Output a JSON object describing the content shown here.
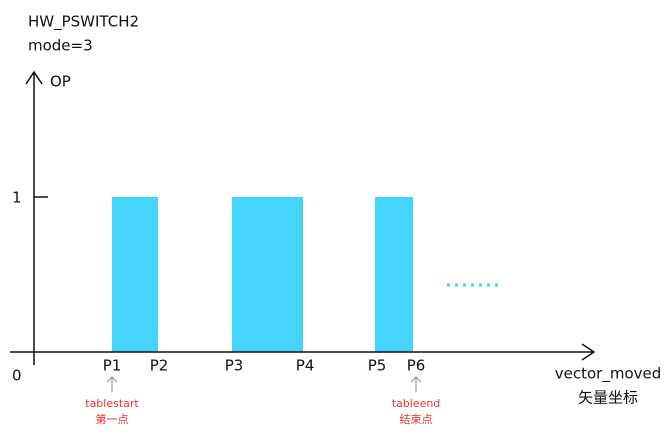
{
  "header": {
    "title": "HW_PSWITCH2",
    "subtitle": "mode=3"
  },
  "axes": {
    "y_label": "OP",
    "y_high": "1",
    "origin": "0",
    "x_label": "vector_moved",
    "x_label_cn": "矢量坐标"
  },
  "points": [
    "P1",
    "P2",
    "P3",
    "P4",
    "P5",
    "P6"
  ],
  "annotations": [
    {
      "label": "tablestart",
      "note": "第一点"
    },
    {
      "label": "tableend",
      "note": "结束点"
    }
  ]
}
